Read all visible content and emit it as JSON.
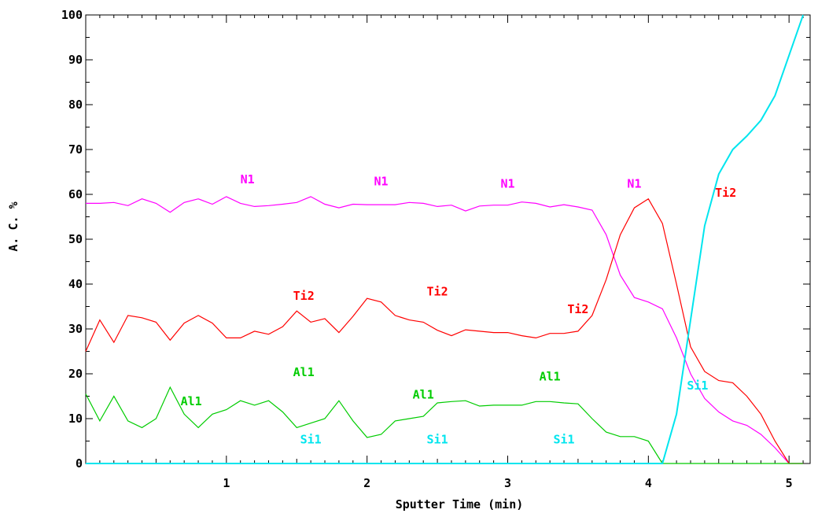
{
  "chart_data": {
    "type": "line",
    "xlabel": "Sputter Time (min)",
    "ylabel": "A. C. %",
    "xlim": [
      0,
      5.15
    ],
    "ylim": [
      0,
      100
    ],
    "x_ticks": [
      "1",
      "2",
      "3",
      "4",
      "5"
    ],
    "y_ticks": [
      "0",
      "10",
      "20",
      "30",
      "40",
      "50",
      "60",
      "70",
      "80",
      "90",
      "100"
    ],
    "grid": false,
    "series": [
      {
        "name": "N1",
        "color": "#ff00ff",
        "x": [
          0,
          0.1,
          0.2,
          0.3,
          0.4,
          0.5,
          0.6,
          0.7,
          0.8,
          0.9,
          1.0,
          1.1,
          1.2,
          1.3,
          1.4,
          1.5,
          1.6,
          1.7,
          1.8,
          1.9,
          2.0,
          2.1,
          2.2,
          2.3,
          2.4,
          2.5,
          2.6,
          2.7,
          2.8,
          2.9,
          3.0,
          3.1,
          3.2,
          3.3,
          3.4,
          3.5,
          3.6,
          3.7,
          3.8,
          3.9,
          4.0,
          4.1,
          4.2,
          4.3,
          4.4,
          4.5,
          4.6,
          4.7,
          4.8,
          4.9,
          5.0,
          5.1
        ],
        "y": [
          58,
          58,
          58.2,
          57.5,
          59,
          58,
          56,
          58.2,
          59,
          57.8,
          59.5,
          58,
          57.3,
          57.5,
          57.8,
          58.2,
          59.5,
          57.8,
          57,
          57.8,
          57.7,
          57.7,
          57.7,
          58.2,
          58,
          57.3,
          57.6,
          56.3,
          57.4,
          57.6,
          57.6,
          58.3,
          58,
          57.2,
          57.7,
          57.2,
          56.5,
          51,
          42,
          37,
          36,
          34.5,
          28,
          20,
          14.5,
          11.5,
          9.5,
          8.5,
          6.5,
          3.5,
          0,
          0
        ]
      },
      {
        "name": "Ti2",
        "color": "#ff0000",
        "x": [
          0,
          0.1,
          0.2,
          0.3,
          0.4,
          0.5,
          0.6,
          0.7,
          0.8,
          0.9,
          1.0,
          1.1,
          1.2,
          1.3,
          1.4,
          1.5,
          1.6,
          1.7,
          1.8,
          1.9,
          2.0,
          2.1,
          2.2,
          2.3,
          2.4,
          2.5,
          2.6,
          2.7,
          2.8,
          2.9,
          3.0,
          3.1,
          3.2,
          3.3,
          3.4,
          3.5,
          3.6,
          3.7,
          3.8,
          3.9,
          4.0,
          4.1,
          4.2,
          4.3,
          4.4,
          4.5,
          4.6,
          4.7,
          4.8,
          4.9,
          5.0,
          5.1
        ],
        "y": [
          25,
          32,
          27,
          33,
          32.5,
          31.5,
          27.5,
          31.3,
          33,
          31.3,
          28,
          28,
          29.5,
          28.8,
          30.5,
          34,
          31.5,
          32.3,
          29.2,
          32.8,
          36.8,
          36,
          33,
          32,
          31.5,
          29.7,
          28.5,
          29.8,
          29.5,
          29.2,
          29.2,
          28.5,
          28,
          29,
          29,
          29.5,
          33,
          41,
          51,
          57,
          59,
          53.5,
          40,
          26,
          20.5,
          18.5,
          18,
          15,
          11,
          5,
          0,
          0
        ]
      },
      {
        "name": "Al1",
        "color": "#00cc00",
        "x": [
          0,
          0.1,
          0.2,
          0.3,
          0.4,
          0.5,
          0.6,
          0.7,
          0.8,
          0.9,
          1.0,
          1.1,
          1.2,
          1.3,
          1.4,
          1.5,
          1.6,
          1.7,
          1.8,
          1.9,
          2.0,
          2.1,
          2.2,
          2.3,
          2.4,
          2.5,
          2.6,
          2.7,
          2.8,
          2.9,
          3.0,
          3.1,
          3.2,
          3.3,
          3.4,
          3.5,
          3.6,
          3.7,
          3.8,
          3.9,
          4.0,
          4.1,
          4.2,
          4.3,
          4.4,
          4.5,
          4.6,
          4.7,
          4.8,
          4.9,
          5.0,
          5.1
        ],
        "y": [
          15.5,
          9.5,
          15,
          9.5,
          8,
          10,
          17,
          11,
          8,
          11,
          12,
          14,
          13,
          14,
          11.5,
          8,
          9,
          10,
          14,
          9.5,
          5.8,
          6.5,
          9.5,
          10,
          10.5,
          13.5,
          13.8,
          14,
          12.8,
          13,
          13,
          13,
          13.8,
          13.8,
          13.5,
          13.3,
          10,
          7,
          6,
          6,
          5,
          0,
          0,
          0,
          0,
          0,
          0,
          0,
          0,
          0,
          0,
          0
        ]
      },
      {
        "name": "Si1",
        "color": "#00e5ee",
        "x": [
          0,
          1,
          2,
          3,
          4.0,
          4.1,
          4.2,
          4.3,
          4.4,
          4.5,
          4.6,
          4.7,
          4.8,
          4.9,
          5.0,
          5.1
        ],
        "y": [
          0,
          0,
          0,
          0,
          0,
          0,
          11,
          32,
          53,
          64.5,
          70,
          73,
          76.5,
          82,
          91,
          100
        ]
      }
    ],
    "annotations": [
      {
        "text": "N1",
        "series": "N1",
        "x": 1.15,
        "y": 62.5
      },
      {
        "text": "N1",
        "series": "N1",
        "x": 2.1,
        "y": 62
      },
      {
        "text": "N1",
        "series": "N1",
        "x": 3.0,
        "y": 61.5
      },
      {
        "text": "N1",
        "series": "N1",
        "x": 3.9,
        "y": 61.5
      },
      {
        "text": "Ti2",
        "series": "Ti2",
        "x": 4.55,
        "y": 59.5
      },
      {
        "text": "Ti2",
        "series": "Ti2",
        "x": 1.55,
        "y": 36.5
      },
      {
        "text": "Ti2",
        "series": "Ti2",
        "x": 2.5,
        "y": 37.5
      },
      {
        "text": "Ti2",
        "series": "Ti2",
        "x": 3.5,
        "y": 33.5
      },
      {
        "text": "Al1",
        "series": "Al1",
        "x": 1.55,
        "y": 19.5
      },
      {
        "text": "Al1",
        "series": "Al1",
        "x": 0.75,
        "y": 13
      },
      {
        "text": "Al1",
        "series": "Al1",
        "x": 2.4,
        "y": 14.5
      },
      {
        "text": "Al1",
        "series": "Al1",
        "x": 3.3,
        "y": 18.5
      },
      {
        "text": "Si1",
        "series": "Si1",
        "x": 4.35,
        "y": 16.5
      },
      {
        "text": "Si1",
        "series": "Si1",
        "x": 1.6,
        "y": 4.5
      },
      {
        "text": "Si1",
        "series": "Si1",
        "x": 2.5,
        "y": 4.5
      },
      {
        "text": "Si1",
        "series": "Si1",
        "x": 3.4,
        "y": 4.5
      }
    ]
  }
}
